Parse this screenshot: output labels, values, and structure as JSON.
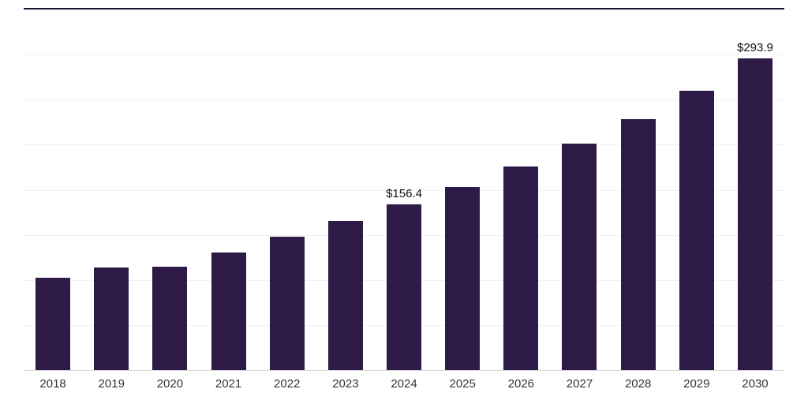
{
  "chart_data": {
    "type": "bar",
    "title": "",
    "xlabel": "",
    "ylabel": "",
    "categories": [
      "2018",
      "2019",
      "2020",
      "2021",
      "2022",
      "2023",
      "2024",
      "2025",
      "2026",
      "2027",
      "2028",
      "2029",
      "2030"
    ],
    "values": [
      86.9,
      96.5,
      97.5,
      111.2,
      126.0,
      140.5,
      156.4,
      172.9,
      192.0,
      213.5,
      236.5,
      263.5,
      293.9
    ],
    "data_labels": {
      "6": "$156.4",
      "12": "$293.9"
    },
    "ylim": [
      0,
      340
    ],
    "grid": true,
    "legend": "none",
    "bar_color": "#2e1a47",
    "gridline_color": "#f1f1f3",
    "axis_line_color": "#d9d9d9",
    "top_rule_color": "#1c1130"
  }
}
